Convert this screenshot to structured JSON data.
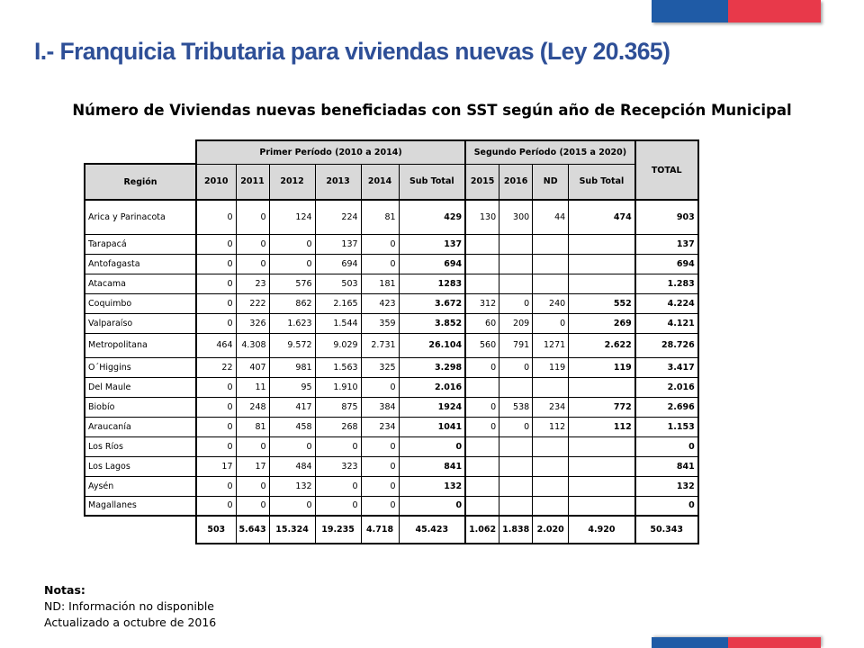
{
  "colors": {
    "flag_blue": "#1f5ba6",
    "flag_red": "#e8394a",
    "title_color": "#2e4f97",
    "header_gray": "#d9d9d9"
  },
  "title": "I.- Franquicia Tributaria para viviendas nuevas (Ley 20.365)",
  "subtitle": "Número de Viviendas nuevas beneficiadas con SST según año de Recepción Municipal",
  "table": {
    "group1": "Primer Período (2010 a 2014)",
    "group2": "Segundo Período (2015 a 2020)",
    "total_label": "TOTAL",
    "headers": [
      "Región",
      "2010",
      "2011",
      "2012",
      "2013",
      "2014",
      "Sub Total",
      "2015",
      "2016",
      "ND",
      "Sub Total"
    ],
    "rows": [
      [
        "Arica y Parinacota",
        "0",
        "0",
        "124",
        "224",
        "81",
        "429",
        "130",
        "300",
        "44",
        "474",
        "903"
      ],
      [
        "Tarapacá",
        "0",
        "0",
        "0",
        "137",
        "0",
        "137",
        "",
        "",
        "",
        "",
        "137"
      ],
      [
        "Antofagasta",
        "0",
        "0",
        "0",
        "694",
        "0",
        "694",
        "",
        "",
        "",
        "",
        "694"
      ],
      [
        "Atacama",
        "0",
        "23",
        "576",
        "503",
        "181",
        "1283",
        "",
        "",
        "",
        "",
        "1.283"
      ],
      [
        "Coquimbo",
        "0",
        "222",
        "862",
        "2.165",
        "423",
        "3.672",
        "312",
        "0",
        "240",
        "552",
        "4.224"
      ],
      [
        "Valparaíso",
        "0",
        "326",
        "1.623",
        "1.544",
        "359",
        "3.852",
        "60",
        "209",
        "0",
        "269",
        "4.121"
      ],
      [
        "Metropolitana",
        "464",
        "4.308",
        "9.572",
        "9.029",
        "2.731",
        "26.104",
        "560",
        "791",
        "1271",
        "2.622",
        "28.726"
      ],
      [
        "O´Higgins",
        "22",
        "407",
        "981",
        "1.563",
        "325",
        "3.298",
        "0",
        "0",
        "119",
        "119",
        "3.417"
      ],
      [
        "Del Maule",
        "0",
        "11",
        "95",
        "1.910",
        "0",
        "2.016",
        "",
        "",
        "",
        "",
        "2.016"
      ],
      [
        "Biobío",
        "0",
        "248",
        "417",
        "875",
        "384",
        "1924",
        "0",
        "538",
        "234",
        "772",
        "2.696"
      ],
      [
        "Araucanía",
        "0",
        "81",
        "458",
        "268",
        "234",
        "1041",
        "0",
        "0",
        "112",
        "112",
        "1.153"
      ],
      [
        "Los Ríos",
        "0",
        "0",
        "0",
        "0",
        "0",
        "0",
        "",
        "",
        "",
        "",
        "0"
      ],
      [
        "Los Lagos",
        "17",
        "17",
        "484",
        "323",
        "0",
        "841",
        "",
        "",
        "",
        "",
        "841"
      ],
      [
        "Aysén",
        "0",
        "0",
        "132",
        "0",
        "0",
        "132",
        "",
        "",
        "",
        "",
        "132"
      ],
      [
        "Magallanes",
        "0",
        "0",
        "0",
        "0",
        "0",
        "0",
        "",
        "",
        "",
        "",
        "0"
      ]
    ],
    "totals": [
      "503",
      "5.643",
      "15.324",
      "19.235",
      "4.718",
      "45.423",
      "1.062",
      "1.838",
      "2.020",
      "4.920",
      "50.343"
    ]
  },
  "notes": {
    "heading": "Notas:",
    "line1": "ND: Información no disponible",
    "line2": "Actualizado a octubre de 2016"
  }
}
